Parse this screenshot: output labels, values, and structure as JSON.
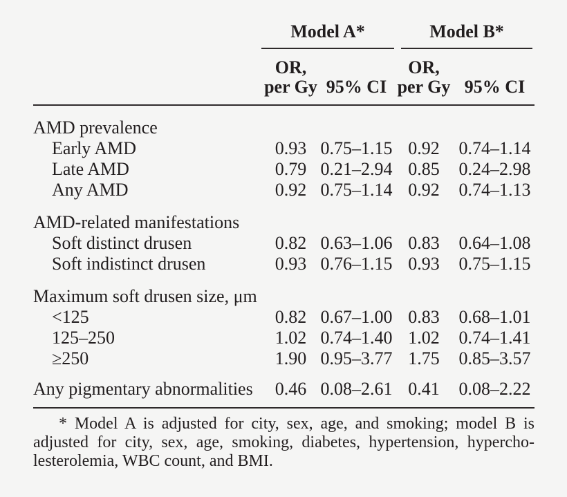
{
  "table": {
    "group_headers": {
      "model_a": "Model A*",
      "model_b": "Model B*"
    },
    "col_headers": {
      "or_line1": "OR,",
      "or_line2": "per Gy",
      "ci": "95% CI"
    },
    "sections": [
      {
        "title": "AMD prevalence",
        "rows": [
          {
            "label": "Early AMD",
            "a_or": "0.93",
            "a_ci": "0.75–1.15",
            "b_or": "0.92",
            "b_ci": "0.74–1.14"
          },
          {
            "label": "Late AMD",
            "a_or": "0.79",
            "a_ci": "0.21–2.94",
            "b_or": "0.85",
            "b_ci": "0.24–2.98"
          },
          {
            "label": "Any AMD",
            "a_or": "0.92",
            "a_ci": "0.75–1.14",
            "b_or": "0.92",
            "b_ci": "0.74–1.13"
          }
        ]
      },
      {
        "title": "AMD-related manifestations",
        "rows": [
          {
            "label": "Soft distinct drusen",
            "a_or": "0.82",
            "a_ci": "0.63–1.06",
            "b_or": "0.83",
            "b_ci": "0.64–1.08"
          },
          {
            "label": "Soft indistinct drusen",
            "a_or": "0.93",
            "a_ci": "0.76–1.15",
            "b_or": "0.93",
            "b_ci": "0.75–1.15"
          }
        ]
      },
      {
        "title": "Maximum soft drusen size, μm",
        "rows": [
          {
            "label": "<125",
            "a_or": "0.82",
            "a_ci": "0.67–1.00",
            "b_or": "0.83",
            "b_ci": "0.68–1.01"
          },
          {
            "label": "125–250",
            "a_or": "1.02",
            "a_ci": "0.74–1.40",
            "b_or": "1.02",
            "b_ci": "0.74–1.41"
          },
          {
            "label": "≥250",
            "a_or": "1.90",
            "a_ci": "0.95–3.77",
            "b_or": "1.75",
            "b_ci": "0.85–3.57"
          }
        ]
      }
    ],
    "final_row": {
      "label": "Any pigmentary abnormalities",
      "a_or": "0.46",
      "a_ci": "0.08–2.61",
      "b_or": "0.41",
      "b_ci": "0.08–2.22"
    },
    "footnote_lines": {
      "line1": "* Model A is adjusted for city, sex, age, and smoking; model B is",
      "line2": "adjusted for city, sex, age, smoking, diabetes, hypertension, hypercho-",
      "line3": "lesterolemia, WBC count, and BMI."
    }
  }
}
